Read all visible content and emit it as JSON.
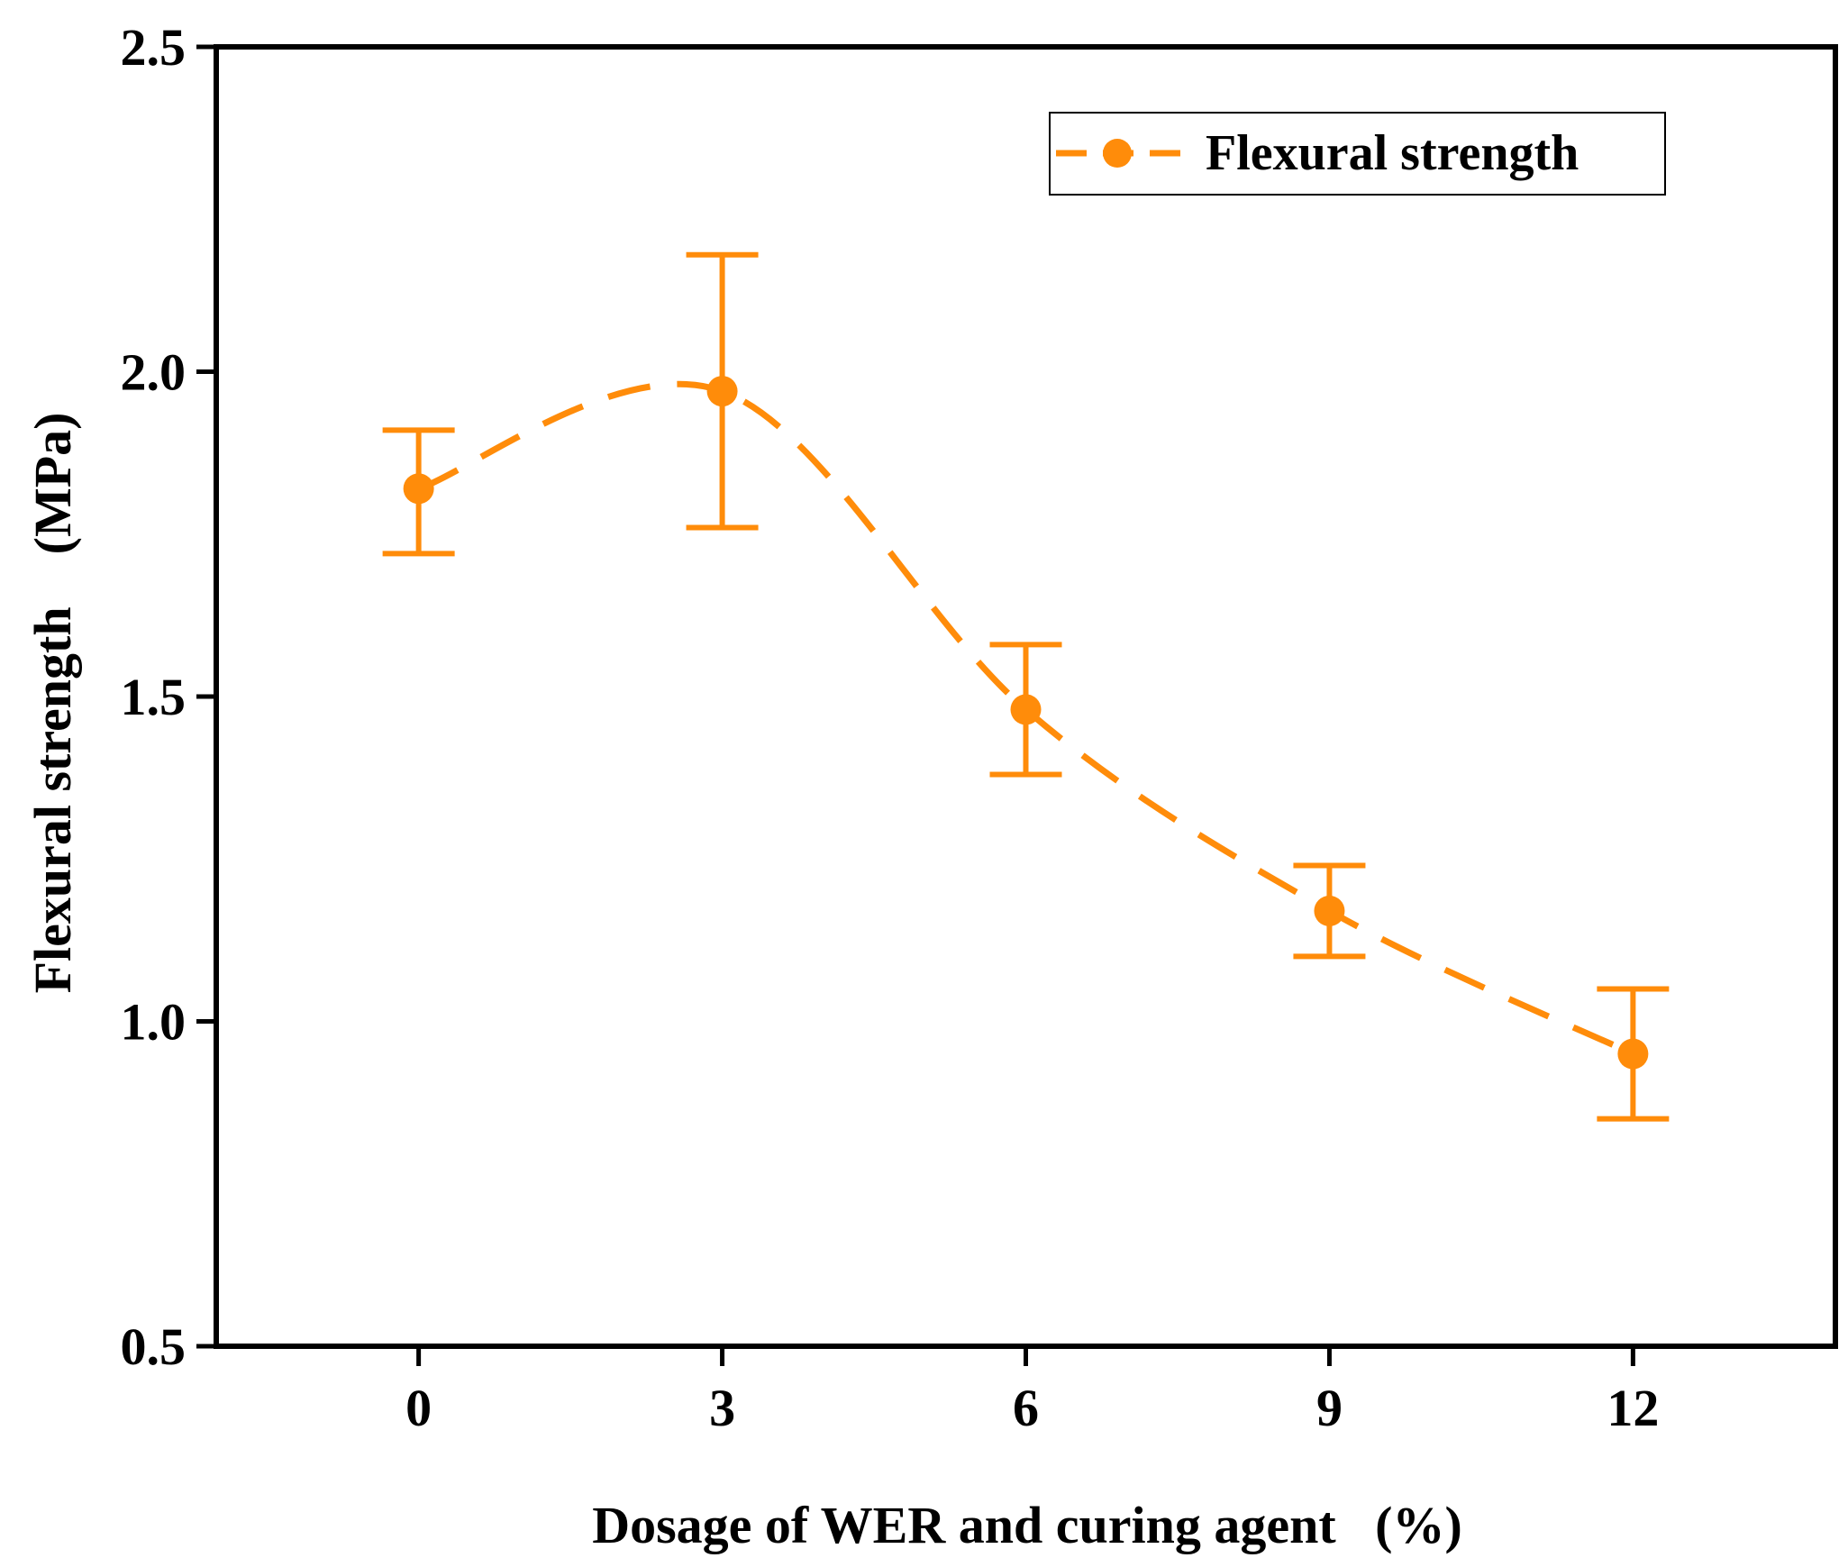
{
  "chart_data": {
    "type": "line",
    "title": "",
    "xlabel": "Dosage of WER and curing agent   (%)",
    "ylabel": "Flexural strength    (MPa)",
    "xlim": [
      -2,
      14
    ],
    "ylim": [
      0.5,
      2.5
    ],
    "xticks": [
      0,
      3,
      6,
      9,
      12
    ],
    "xtick_labels": [
      "0",
      "3",
      "6",
      "9",
      "12"
    ],
    "yticks": [
      0.5,
      1.0,
      1.5,
      2.0,
      2.5
    ],
    "ytick_labels": [
      "0.5",
      "1.0",
      "1.5",
      "2.0",
      "2.5"
    ],
    "grid": false,
    "legend_position": "top-right",
    "series": [
      {
        "name": "Flexural strength",
        "color": "#ff8c0a",
        "line_style": "dashed-smooth",
        "x": [
          0,
          3,
          6,
          9,
          12
        ],
        "y": [
          1.82,
          1.97,
          1.48,
          1.17,
          0.95
        ],
        "y_upper": [
          1.91,
          2.18,
          1.58,
          1.24,
          1.05
        ],
        "y_lower": [
          1.72,
          1.76,
          1.38,
          1.1,
          0.85
        ]
      }
    ]
  }
}
